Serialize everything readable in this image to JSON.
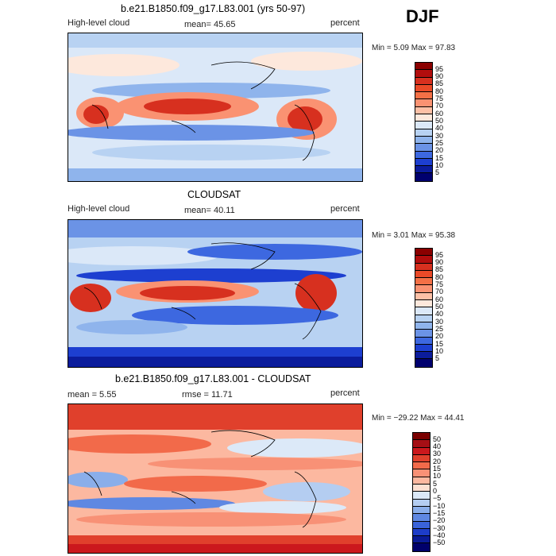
{
  "season": "DJF",
  "panels": [
    {
      "title": "b.e21.B1850.f09_g17.L83.001 (yrs 50-97)",
      "left_label": "High-level cloud",
      "center_label": "mean=  45.65",
      "right_label": "percent",
      "minmax": "Min =   5.09 Max =  97.83",
      "colorbar": {
        "labels": [
          "95",
          "90",
          "85",
          "80",
          "75",
          "70",
          "60",
          "50",
          "40",
          "30",
          "25",
          "20",
          "15",
          "10",
          "5"
        ],
        "colors": [
          "#8b0000",
          "#b20d0d",
          "#d7301f",
          "#ea4a28",
          "#f47046",
          "#fa9272",
          "#fdc0a6",
          "#fde8dc",
          "#dbe8f8",
          "#b8d2f2",
          "#8fb4ec",
          "#6b93e6",
          "#3d68e0",
          "#1d3fd0",
          "#0b1c9c",
          "#00006e"
        ]
      }
    },
    {
      "title": "CLOUDSAT",
      "left_label": "High-level cloud",
      "center_label": "mean=  40.11",
      "right_label": "percent",
      "minmax": "Min =   3.01 Max =  95.38",
      "colorbar": {
        "labels": [
          "95",
          "90",
          "85",
          "80",
          "75",
          "70",
          "60",
          "50",
          "40",
          "30",
          "25",
          "20",
          "15",
          "10",
          "5"
        ],
        "colors": [
          "#8b0000",
          "#b20d0d",
          "#d7301f",
          "#ea4a28",
          "#f47046",
          "#fa9272",
          "#fdc0a6",
          "#fde8dc",
          "#dbe8f8",
          "#b8d2f2",
          "#8fb4ec",
          "#6b93e6",
          "#3d68e0",
          "#1d3fd0",
          "#0b1c9c",
          "#00006e"
        ]
      }
    },
    {
      "title": "b.e21.B1850.f09_g17.L83.001 - CLOUDSAT",
      "left_label": "mean =   5.55",
      "center_label": "rmse =  11.71",
      "right_label": "percent",
      "minmax": "Min = −29.22 Max =  44.41",
      "colorbar": {
        "labels": [
          "50",
          "40",
          "30",
          "20",
          "15",
          "10",
          "5",
          "0",
          "−5",
          "−10",
          "−15",
          "−20",
          "−30",
          "−40",
          "−50"
        ],
        "colors": [
          "#7a0000",
          "#a50f15",
          "#cb181d",
          "#e0402c",
          "#f26a4a",
          "#f89176",
          "#fcb8a0",
          "#fde0d2",
          "#dce9f8",
          "#b4cdf1",
          "#8aaeea",
          "#5f88e2",
          "#3a63da",
          "#1d3dc8",
          "#0a1b96",
          "#00006b"
        ]
      }
    }
  ]
}
